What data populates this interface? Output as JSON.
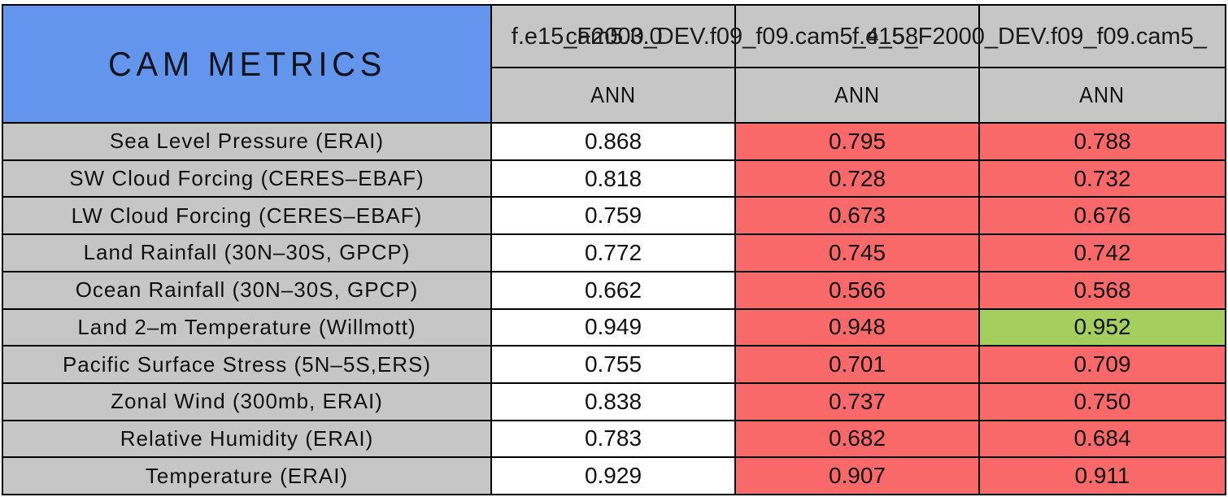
{
  "table_title": "CAM METRICS",
  "colors": {
    "header_blue": "#6495ED",
    "header_gray": "#C6C6C6",
    "worse_red": "#FA6969",
    "better_green": "#A4CE5E",
    "neutral_white": "#FFFFFF",
    "grid_black": "#000000"
  },
  "columns": [
    {
      "run_label": "cam5.3.0",
      "season": "ANN"
    },
    {
      "run_label": "f.e15_F2000_DEV.f09_f09.cam5_4_58",
      "season": "ANN"
    },
    {
      "run_label": "f.e15_F2000_DEV.f09_f09.cam5_",
      "season": "ANN"
    }
  ],
  "chart_data": {
    "type": "table",
    "title": "CAM METRICS",
    "categories": [
      "cam5.3.0",
      "f.e15_F2000_DEV.f09_f09.cam5_4_58",
      "f.e15_F2000_DEV.f09_f09.cam5_"
    ],
    "series_note": "rows listed in rows[] below"
  },
  "rows": [
    {
      "label": "Sea Level Pressure (ERAI)",
      "values": [
        "0.868",
        "0.795",
        "0.788"
      ],
      "cell_colors": [
        "white",
        "red",
        "red"
      ]
    },
    {
      "label": "SW Cloud Forcing (CERES–EBAF)",
      "values": [
        "0.818",
        "0.728",
        "0.732"
      ],
      "cell_colors": [
        "white",
        "red",
        "red"
      ]
    },
    {
      "label": "LW Cloud Forcing (CERES–EBAF)",
      "values": [
        "0.759",
        "0.673",
        "0.676"
      ],
      "cell_colors": [
        "white",
        "red",
        "red"
      ]
    },
    {
      "label": "Land Rainfall (30N–30S, GPCP)",
      "values": [
        "0.772",
        "0.745",
        "0.742"
      ],
      "cell_colors": [
        "white",
        "red",
        "red"
      ]
    },
    {
      "label": "Ocean Rainfall (30N–30S, GPCP)",
      "values": [
        "0.662",
        "0.566",
        "0.568"
      ],
      "cell_colors": [
        "white",
        "red",
        "red"
      ]
    },
    {
      "label": "Land 2–m Temperature (Willmott)",
      "values": [
        "0.949",
        "0.948",
        "0.952"
      ],
      "cell_colors": [
        "white",
        "red",
        "green"
      ]
    },
    {
      "label": "Pacific Surface Stress (5N–5S,ERS)",
      "values": [
        "0.755",
        "0.701",
        "0.709"
      ],
      "cell_colors": [
        "white",
        "red",
        "red"
      ]
    },
    {
      "label": "Zonal Wind (300mb, ERAI)",
      "values": [
        "0.838",
        "0.737",
        "0.750"
      ],
      "cell_colors": [
        "white",
        "red",
        "red"
      ]
    },
    {
      "label": "Relative Humidity (ERAI)",
      "values": [
        "0.783",
        "0.682",
        "0.684"
      ],
      "cell_colors": [
        "white",
        "red",
        "red"
      ]
    },
    {
      "label": "Temperature (ERAI)",
      "values": [
        "0.929",
        "0.907",
        "0.911"
      ],
      "cell_colors": [
        "white",
        "red",
        "red"
      ]
    }
  ]
}
